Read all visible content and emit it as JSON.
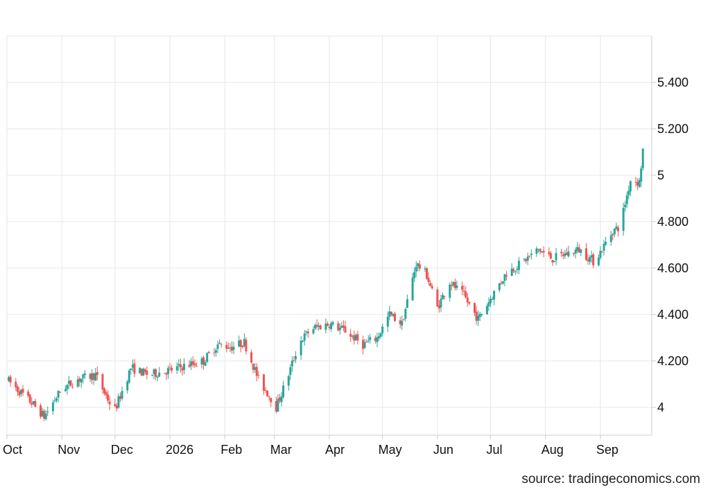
{
  "source": "source: tradingeconomics.com",
  "chart_data": {
    "type": "candlestick",
    "title": "",
    "xlabel": "",
    "ylabel": "",
    "x_range": [
      "2025-10-01",
      "2026-09-30"
    ],
    "ylim": [
      3.88,
      5.6
    ],
    "grid": true,
    "legend": "none",
    "colors": {
      "up": "#26a69a",
      "down": "#ef5350",
      "grid": "#e6e6e6",
      "axis": "#cccccc"
    },
    "x_ticks": [
      {
        "date": "2025-10-01",
        "label": "Oct"
      },
      {
        "date": "2025-11-01",
        "label": "Nov"
      },
      {
        "date": "2025-12-01",
        "label": "Dec"
      },
      {
        "date": "2026-01-01",
        "label": "2026"
      },
      {
        "date": "2026-02-01",
        "label": "Feb"
      },
      {
        "date": "2026-03-01",
        "label": "Mar"
      },
      {
        "date": "2026-04-01",
        "label": "Apr"
      },
      {
        "date": "2026-05-01",
        "label": "May"
      },
      {
        "date": "2026-06-01",
        "label": "Jun"
      },
      {
        "date": "2026-07-01",
        "label": "Jul"
      },
      {
        "date": "2026-08-01",
        "label": "Aug"
      },
      {
        "date": "2026-09-01",
        "label": "Sep"
      }
    ],
    "y_ticks": [
      {
        "value": 4.0,
        "label": "4"
      },
      {
        "value": 4.2,
        "label": "4.200"
      },
      {
        "value": 4.4,
        "label": "4.400"
      },
      {
        "value": 4.6,
        "label": "4.600"
      },
      {
        "value": 4.8,
        "label": "4.800"
      },
      {
        "value": 5.0,
        "label": "5"
      },
      {
        "value": 5.2,
        "label": "5.200"
      },
      {
        "value": 5.4,
        "label": "5.400"
      }
    ],
    "series": [
      {
        "date": [
          "2025-10-01",
          "2025-10-15",
          "2025-10-22",
          "2025-11-01",
          "2025-11-10",
          "2025-11-20",
          "2025-11-28",
          "2025-12-01",
          "2025-12-10",
          "2025-12-20",
          "2026-01-01",
          "2026-01-10",
          "2026-01-20",
          "2026-01-28",
          "2026-02-05",
          "2026-02-12",
          "2026-02-20",
          "2026-02-27",
          "2026-03-01",
          "2026-03-08",
          "2026-03-15",
          "2026-03-22",
          "2026-04-01",
          "2026-04-10",
          "2026-04-20",
          "2026-04-28",
          "2026-05-05",
          "2026-05-12",
          "2026-05-20",
          "2026-05-26",
          "2026-06-01",
          "2026-06-08",
          "2026-06-16",
          "2026-06-24",
          "2026-07-01",
          "2026-07-10",
          "2026-07-18",
          "2026-07-28",
          "2026-08-05",
          "2026-08-12",
          "2026-08-20",
          "2026-08-28",
          "2026-09-01",
          "2026-09-08",
          "2026-09-12",
          "2026-09-18",
          "2026-09-23",
          "2026-09-26"
        ],
        "close": [
          4.12,
          4.02,
          3.96,
          4.08,
          4.12,
          4.14,
          4.02,
          3.99,
          4.17,
          4.14,
          4.16,
          4.18,
          4.2,
          4.27,
          4.26,
          4.28,
          4.12,
          4.04,
          3.98,
          4.12,
          4.28,
          4.34,
          4.36,
          4.33,
          4.27,
          4.3,
          4.4,
          4.36,
          4.62,
          4.57,
          4.43,
          4.54,
          4.48,
          4.38,
          4.47,
          4.58,
          4.62,
          4.68,
          4.64,
          4.66,
          4.68,
          4.63,
          4.67,
          4.76,
          4.78,
          4.98,
          4.97,
          5.18
        ]
      }
    ]
  }
}
